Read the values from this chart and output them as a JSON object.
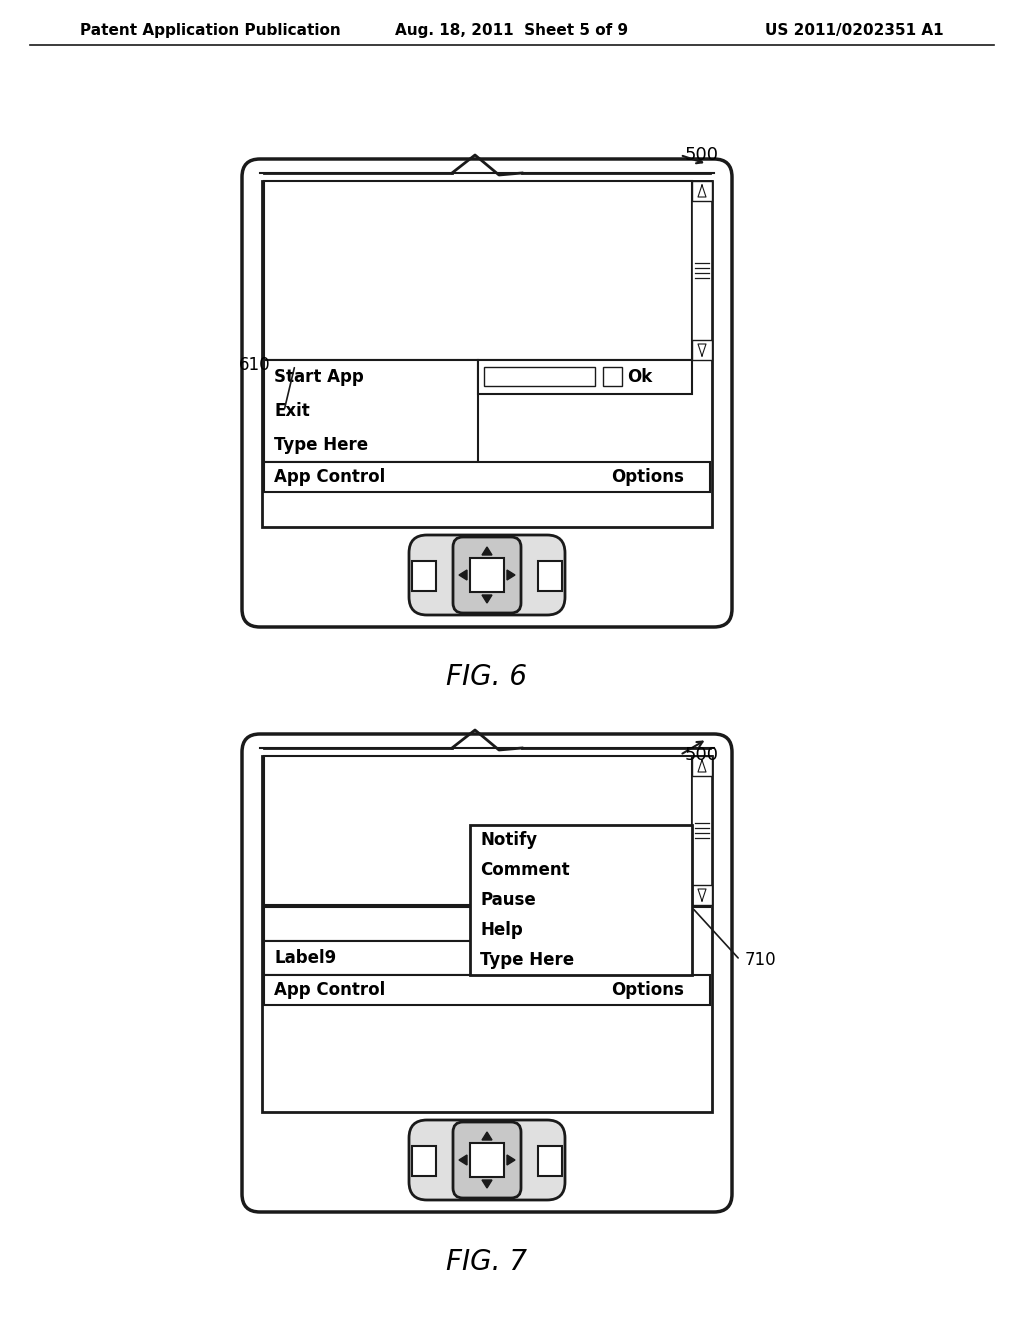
{
  "title_left": "Patent Application Publication",
  "title_mid": "Aug. 18, 2011  Sheet 5 of 9",
  "title_right": "US 2011/0202351 A1",
  "fig6_label": "FIG. 6",
  "fig7_label": "FIG. 7",
  "ref_500": "500",
  "ref_610": "610",
  "ref_710": "710",
  "fig6_menu_items": [
    "Start App",
    "Exit",
    "Type Here"
  ],
  "fig6_bottom_left": "App Control",
  "fig6_bottom_right": "Options",
  "fig6_ok": "Ok",
  "fig7_menu_items": [
    "Notify",
    "Comment",
    "Pause",
    "Help",
    "Type Here"
  ],
  "fig7_label9": "Label9",
  "fig7_bottom_left": "App Control",
  "fig7_bottom_right": "Options",
  "bg_color": "#ffffff",
  "line_color": "#1a1a1a",
  "text_color": "#000000"
}
